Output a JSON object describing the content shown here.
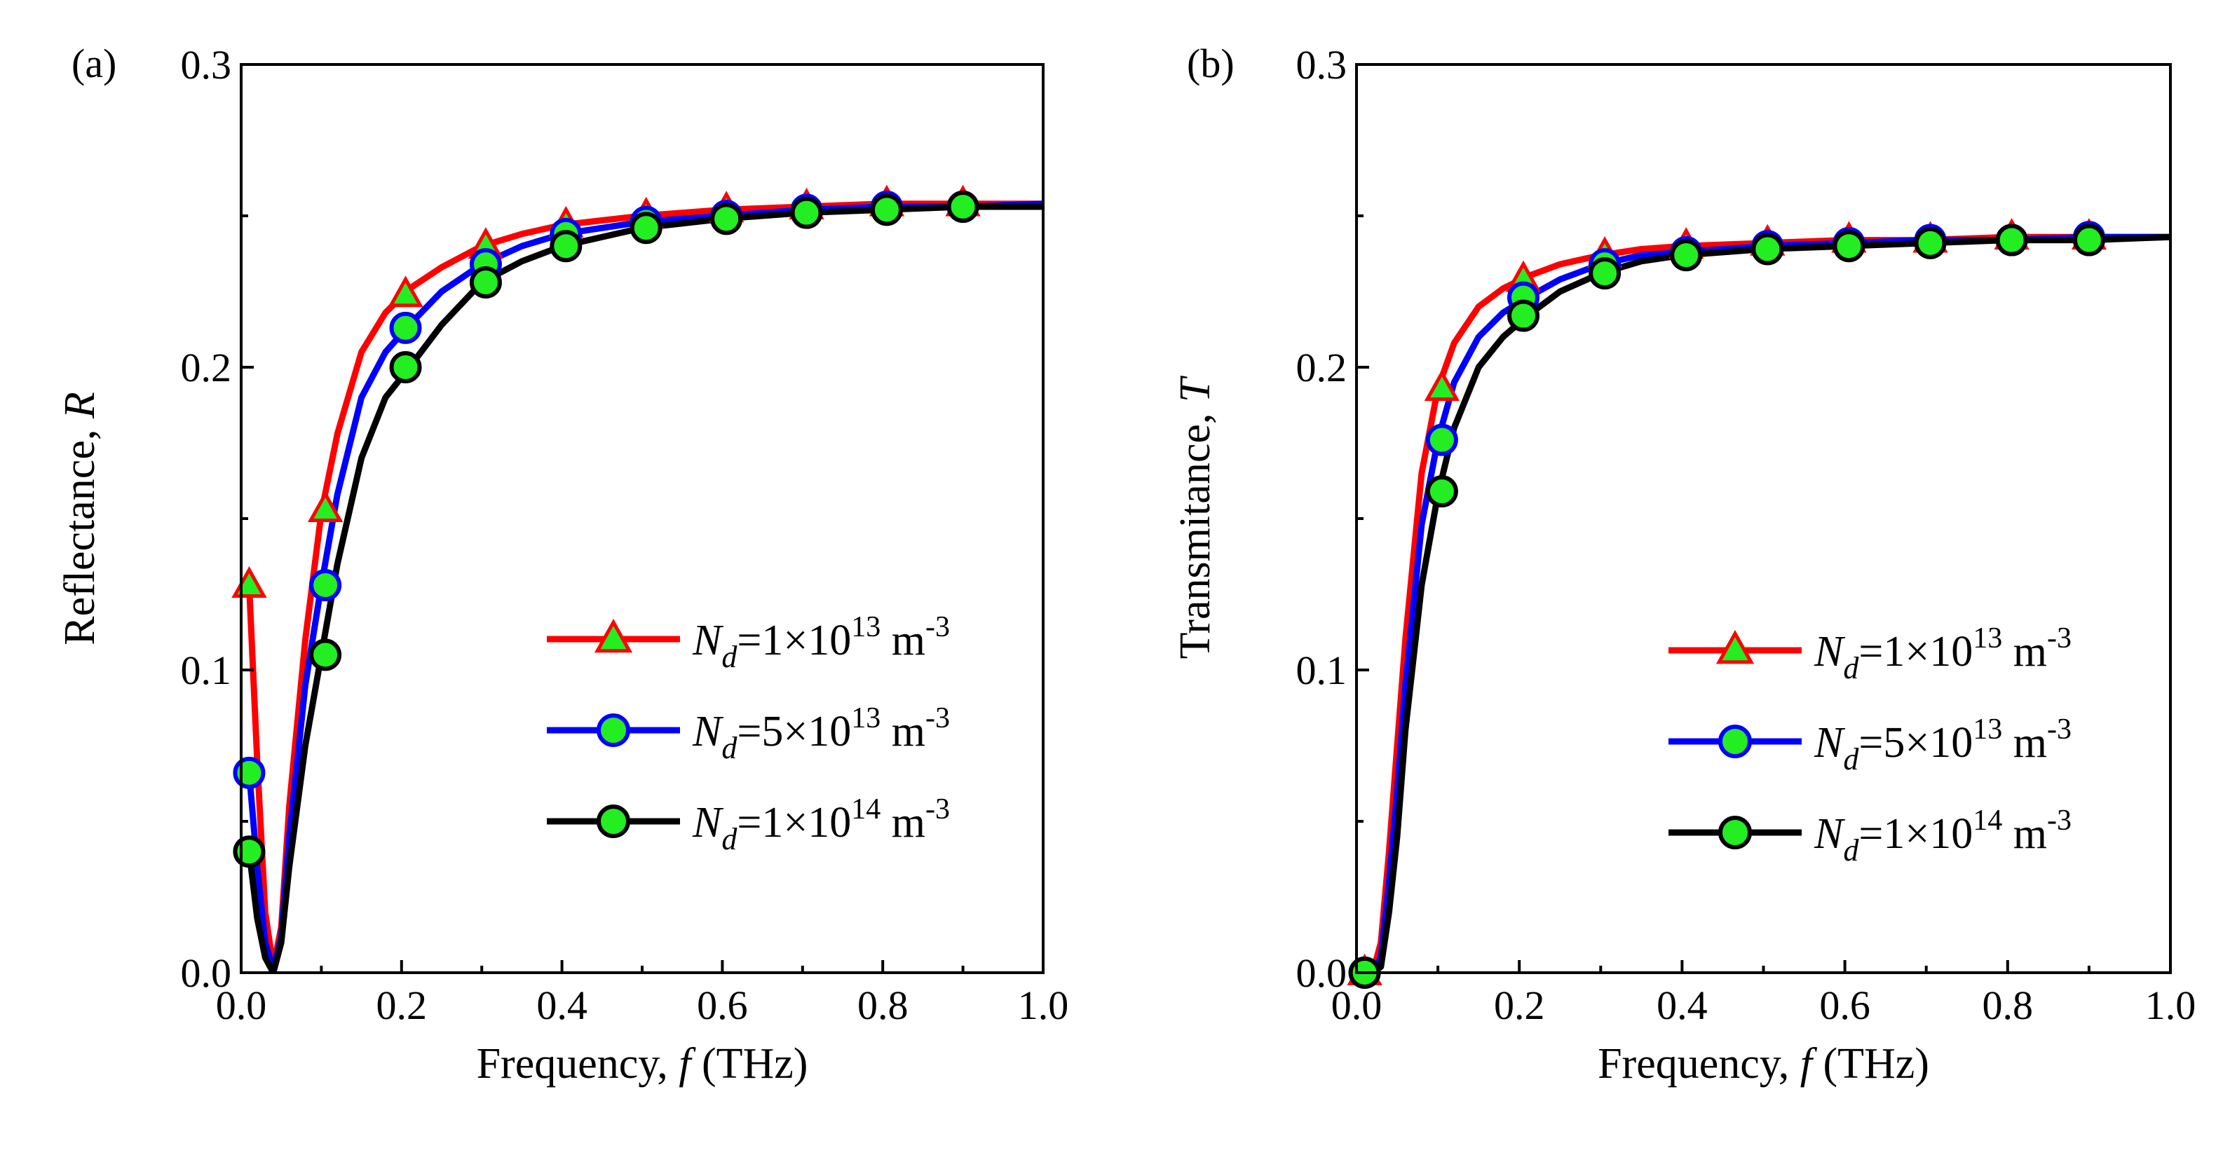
{
  "chart_data": [
    {
      "panel_label": "(a)",
      "type": "line",
      "xlabel_prefix": "Frequency, ",
      "xlabel_var": "f",
      "xlabel_unit": " (THz)",
      "ylabel_prefix": "Reflectance, ",
      "ylabel_var": "R",
      "xlim": [
        0.0,
        1.0
      ],
      "ylim": [
        0.0,
        0.3
      ],
      "xticks": [
        "0.0",
        "0.2",
        "0.4",
        "0.6",
        "0.8",
        "1.0"
      ],
      "yticks": [
        "0.0",
        "0.1",
        "0.2",
        "0.3"
      ],
      "legend_position": "right-middle",
      "series": [
        {
          "name_var": "N",
          "name_sub": "d",
          "name_coef": "=1×10",
          "name_exp": "13",
          "name_unit": " m",
          "name_unit_exp": "-3",
          "color": "#ff0000",
          "marker": "triangle",
          "x": [
            0.01,
            0.02,
            0.03,
            0.04,
            0.05,
            0.06,
            0.08,
            0.1,
            0.12,
            0.15,
            0.18,
            0.21,
            0.25,
            0.3,
            0.35,
            0.4,
            0.5,
            0.6,
            0.7,
            0.8,
            0.9,
            1.0
          ],
          "y": [
            0.128,
            0.07,
            0.02,
            0.002,
            0.015,
            0.055,
            0.11,
            0.152,
            0.178,
            0.205,
            0.218,
            0.226,
            0.233,
            0.24,
            0.244,
            0.247,
            0.25,
            0.252,
            0.253,
            0.254,
            0.254,
            0.254
          ],
          "marker_x": [
            0.01,
            0.105,
            0.205,
            0.305,
            0.405,
            0.505,
            0.605,
            0.705,
            0.805,
            0.9
          ],
          "marker_y": [
            0.128,
            0.153,
            0.224,
            0.24,
            0.247,
            0.25,
            0.252,
            0.253,
            0.254,
            0.254
          ]
        },
        {
          "name_var": "N",
          "name_sub": "d",
          "name_coef": "=5×10",
          "name_exp": "13",
          "name_unit": " m",
          "name_unit_exp": "-3",
          "color": "#0000ff",
          "marker": "circle",
          "x": [
            0.01,
            0.02,
            0.03,
            0.04,
            0.05,
            0.06,
            0.08,
            0.1,
            0.12,
            0.15,
            0.18,
            0.21,
            0.25,
            0.3,
            0.35,
            0.4,
            0.5,
            0.6,
            0.7,
            0.8,
            0.9,
            1.0
          ],
          "y": [
            0.066,
            0.035,
            0.01,
            0.001,
            0.012,
            0.045,
            0.095,
            0.128,
            0.158,
            0.19,
            0.205,
            0.214,
            0.225,
            0.234,
            0.24,
            0.244,
            0.248,
            0.25,
            0.252,
            0.253,
            0.253,
            0.254
          ],
          "marker_x": [
            0.01,
            0.105,
            0.205,
            0.305,
            0.405,
            0.505,
            0.605,
            0.705,
            0.805,
            0.9
          ],
          "marker_y": [
            0.066,
            0.128,
            0.213,
            0.234,
            0.244,
            0.248,
            0.25,
            0.252,
            0.253,
            0.253
          ]
        },
        {
          "name_var": "N",
          "name_sub": "d",
          "name_coef": "=1×10",
          "name_exp": "14",
          "name_unit": " m",
          "name_unit_exp": "-3",
          "color": "#000000",
          "marker": "circle",
          "x": [
            0.01,
            0.02,
            0.03,
            0.04,
            0.05,
            0.06,
            0.08,
            0.1,
            0.12,
            0.15,
            0.18,
            0.21,
            0.25,
            0.3,
            0.35,
            0.4,
            0.5,
            0.6,
            0.7,
            0.8,
            0.9,
            1.0
          ],
          "y": [
            0.04,
            0.018,
            0.005,
            0.0,
            0.01,
            0.035,
            0.075,
            0.105,
            0.135,
            0.17,
            0.19,
            0.2,
            0.214,
            0.228,
            0.235,
            0.24,
            0.246,
            0.249,
            0.251,
            0.252,
            0.253,
            0.253
          ],
          "marker_x": [
            0.01,
            0.105,
            0.205,
            0.305,
            0.405,
            0.505,
            0.605,
            0.705,
            0.805,
            0.9
          ],
          "marker_y": [
            0.04,
            0.105,
            0.2,
            0.228,
            0.24,
            0.246,
            0.249,
            0.251,
            0.252,
            0.253
          ]
        }
      ]
    },
    {
      "panel_label": "(b)",
      "type": "line",
      "xlabel_prefix": "Frequency, ",
      "xlabel_var": "f",
      "xlabel_unit": " (THz)",
      "ylabel_prefix": "Transmitance, ",
      "ylabel_var": "T",
      "xlim": [
        0.0,
        1.0
      ],
      "ylim": [
        0.0,
        0.3
      ],
      "xticks": [
        "0.0",
        "0.2",
        "0.4",
        "0.6",
        "0.8",
        "1.0"
      ],
      "yticks": [
        "0.0",
        "0.1",
        "0.2",
        "0.3"
      ],
      "legend_position": "right-middle",
      "series": [
        {
          "name_var": "N",
          "name_sub": "d",
          "name_coef": "=1×10",
          "name_exp": "13",
          "name_unit": " m",
          "name_unit_exp": "-3",
          "color": "#ff0000",
          "marker": "triangle",
          "x": [
            0.01,
            0.02,
            0.03,
            0.04,
            0.05,
            0.06,
            0.08,
            0.1,
            0.12,
            0.15,
            0.18,
            0.21,
            0.25,
            0.3,
            0.35,
            0.4,
            0.5,
            0.6,
            0.7,
            0.8,
            0.9,
            1.0
          ],
          "y": [
            0.0,
            0.0,
            0.01,
            0.04,
            0.075,
            0.11,
            0.165,
            0.193,
            0.208,
            0.22,
            0.226,
            0.23,
            0.234,
            0.237,
            0.239,
            0.24,
            0.241,
            0.242,
            0.242,
            0.243,
            0.243,
            0.243
          ],
          "marker_x": [
            0.01,
            0.105,
            0.205,
            0.305,
            0.405,
            0.505,
            0.605,
            0.705,
            0.805,
            0.9
          ],
          "marker_y": [
            0.0,
            0.193,
            0.229,
            0.237,
            0.24,
            0.241,
            0.242,
            0.242,
            0.243,
            0.243
          ]
        },
        {
          "name_var": "N",
          "name_sub": "d",
          "name_coef": "=5×10",
          "name_exp": "13",
          "name_unit": " m",
          "name_unit_exp": "-3",
          "color": "#0000ff",
          "marker": "circle",
          "x": [
            0.01,
            0.02,
            0.03,
            0.04,
            0.05,
            0.06,
            0.08,
            0.1,
            0.12,
            0.15,
            0.18,
            0.21,
            0.25,
            0.3,
            0.35,
            0.4,
            0.5,
            0.6,
            0.7,
            0.8,
            0.9,
            1.0
          ],
          "y": [
            0.0,
            0.0,
            0.005,
            0.03,
            0.06,
            0.095,
            0.148,
            0.176,
            0.195,
            0.21,
            0.218,
            0.223,
            0.229,
            0.234,
            0.237,
            0.238,
            0.24,
            0.241,
            0.242,
            0.242,
            0.243,
            0.243
          ],
          "marker_x": [
            0.01,
            0.105,
            0.205,
            0.305,
            0.405,
            0.505,
            0.605,
            0.705,
            0.805,
            0.9
          ],
          "marker_y": [
            0.0,
            0.176,
            0.223,
            0.234,
            0.238,
            0.24,
            0.241,
            0.242,
            0.242,
            0.243
          ]
        },
        {
          "name_var": "N",
          "name_sub": "d",
          "name_coef": "=1×10",
          "name_exp": "14",
          "name_unit": " m",
          "name_unit_exp": "-3",
          "color": "#000000",
          "marker": "circle",
          "x": [
            0.01,
            0.02,
            0.03,
            0.04,
            0.05,
            0.06,
            0.08,
            0.1,
            0.12,
            0.15,
            0.18,
            0.21,
            0.25,
            0.3,
            0.35,
            0.4,
            0.5,
            0.6,
            0.7,
            0.8,
            0.9,
            1.0
          ],
          "y": [
            0.0,
            0.0,
            0.002,
            0.02,
            0.045,
            0.08,
            0.128,
            0.158,
            0.18,
            0.2,
            0.21,
            0.217,
            0.225,
            0.231,
            0.235,
            0.237,
            0.239,
            0.24,
            0.241,
            0.242,
            0.242,
            0.243
          ],
          "marker_x": [
            0.01,
            0.105,
            0.205,
            0.305,
            0.405,
            0.505,
            0.605,
            0.705,
            0.805,
            0.9
          ],
          "marker_y": [
            0.0,
            0.159,
            0.217,
            0.231,
            0.237,
            0.239,
            0.24,
            0.241,
            0.242,
            0.242
          ]
        }
      ]
    }
  ]
}
